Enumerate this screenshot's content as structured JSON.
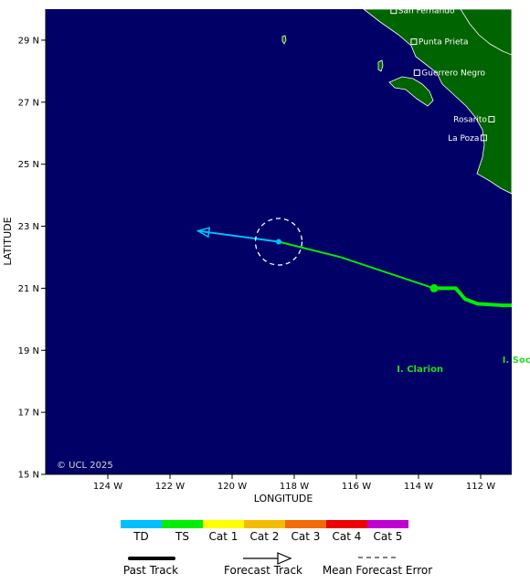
{
  "map": {
    "credit": "© UCL 2025",
    "x_axis_title": "LONGITUDE",
    "y_axis_title": "LATITUDE",
    "lon_ticks": [
      {
        "value": -124,
        "label": "124 W"
      },
      {
        "value": -122,
        "label": "122 W"
      },
      {
        "value": -120,
        "label": "120 W"
      },
      {
        "value": -118,
        "label": "118 W"
      },
      {
        "value": -116,
        "label": "116 W"
      },
      {
        "value": -114,
        "label": "114 W"
      },
      {
        "value": -112,
        "label": "112 W"
      }
    ],
    "lat_ticks": [
      {
        "value": 29,
        "label": "29 N"
      },
      {
        "value": 27,
        "label": "27 N"
      },
      {
        "value": 25,
        "label": "25 N"
      },
      {
        "value": 23,
        "label": "23 N"
      },
      {
        "value": 21,
        "label": "21 N"
      },
      {
        "value": 19,
        "label": "19 N"
      },
      {
        "value": 17,
        "label": "17 N"
      },
      {
        "value": 15,
        "label": "15 N"
      }
    ],
    "lon_range": [
      -126,
      -111
    ],
    "lat_range": [
      15,
      30
    ],
    "colors": {
      "ocean": "#000066",
      "land": "#006400",
      "td": "#00bfff",
      "ts": "#00ee00",
      "cat1": "#ffff00",
      "cat2": "#f4bc00",
      "cat3": "#f26a0a",
      "cat4": "#ee0000",
      "cat5": "#c000d0"
    },
    "places": [
      {
        "name": "San Fernando",
        "lat": 29.95,
        "lon": -114.8
      },
      {
        "name": "Punta Prieta",
        "lat": 28.95,
        "lon": -114.15
      },
      {
        "name": "Guerrero Negro",
        "lat": 27.95,
        "lon": -114.05
      },
      {
        "name": "Rosarito",
        "lat": 26.45,
        "lon": -111.65
      },
      {
        "name": "La Poza",
        "lat": 25.85,
        "lon": -111.9
      }
    ],
    "islands": [
      {
        "name": "I. Clarion",
        "lat": 18.3,
        "lon": -114.7
      },
      {
        "name": "I. Soc",
        "lat": 18.6,
        "lon": -111.3
      }
    ]
  },
  "storm": {
    "past_track": {
      "category": "TS",
      "points": [
        {
          "lon": -110.0,
          "lat": 20.45
        },
        {
          "lon": -111.3,
          "lat": 20.45
        },
        {
          "lon": -112.1,
          "lat": 20.5
        },
        {
          "lon": -112.5,
          "lat": 20.65
        },
        {
          "lon": -112.8,
          "lat": 21.0
        },
        {
          "lon": -113.5,
          "lat": 21.0
        }
      ]
    },
    "current_position": {
      "lon": -113.5,
      "lat": 21.0,
      "category": "TS"
    },
    "forecast_track": {
      "segments": [
        {
          "category": "TS",
          "from": {
            "lon": -113.5,
            "lat": 21.0
          },
          "to": {
            "lon": -116.5,
            "lat": 22.0
          }
        },
        {
          "category": "TS",
          "from": {
            "lon": -116.5,
            "lat": 22.0
          },
          "to": {
            "lon": -118.5,
            "lat": 22.5
          }
        },
        {
          "category": "TD",
          "from": {
            "lon": -118.5,
            "lat": 22.5
          },
          "to": {
            "lon": -121.1,
            "lat": 22.85
          }
        }
      ],
      "points": [
        {
          "lon": -118.5,
          "lat": 22.5,
          "category": "TD"
        }
      ]
    },
    "error_circle": {
      "lon": -118.5,
      "lat": 22.5,
      "radius_deg": 0.75
    }
  },
  "legend": {
    "scale": [
      {
        "label": "TD",
        "color": "#00bfff"
      },
      {
        "label": "TS",
        "color": "#00ee00"
      },
      {
        "label": "Cat 1",
        "color": "#ffff00"
      },
      {
        "label": "Cat 2",
        "color": "#f4bc00"
      },
      {
        "label": "Cat 3",
        "color": "#f26a0a"
      },
      {
        "label": "Cat 4",
        "color": "#ee0000"
      },
      {
        "label": "Cat 5",
        "color": "#c000d0"
      }
    ],
    "track_types": {
      "past": "Past Track",
      "forecast": "Forecast Track",
      "error": "Mean Forecast Error"
    }
  }
}
